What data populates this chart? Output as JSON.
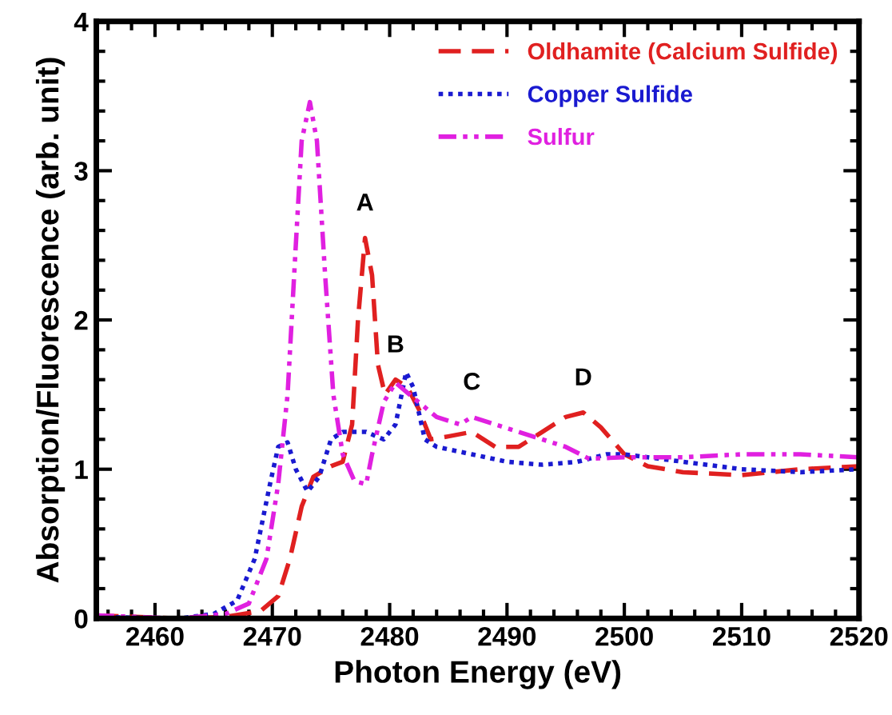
{
  "chart_data": {
    "type": "line",
    "xlabel": "Photon Energy (eV)",
    "ylabel": "Absorption/Fluorescence (arb. unit)",
    "xlim": [
      2455,
      2520
    ],
    "xticks": [
      2460,
      2470,
      2480,
      2490,
      2500,
      2510,
      2520
    ],
    "ylim": [
      0,
      4
    ],
    "yticks": [
      0,
      1,
      2,
      3,
      4
    ],
    "grid": false,
    "legend": "top right",
    "marker": "none",
    "series": [
      {
        "name": "Oldhamite (Calcium Sulfide)",
        "color": "#e02020",
        "line_style": "dashed",
        "x": [
          2455,
          2462,
          2466,
          2469,
          2470.5,
          2471.5,
          2472.5,
          2473.5,
          2475,
          2476,
          2476.8,
          2477.3,
          2477.9,
          2478.5,
          2479,
          2479.6,
          2480.5,
          2481.5,
          2482.5,
          2483.5,
          2485,
          2487,
          2489,
          2491,
          2493,
          2495,
          2496.5,
          2498,
          2500,
          2502,
          2505,
          2510,
          2515,
          2520
        ],
        "values": [
          0.02,
          0,
          0.01,
          0.05,
          0.15,
          0.4,
          0.75,
          0.95,
          1.02,
          1.05,
          1.3,
          2.0,
          2.55,
          2.3,
          1.7,
          1.5,
          1.6,
          1.55,
          1.4,
          1.2,
          1.22,
          1.25,
          1.15,
          1.15,
          1.25,
          1.35,
          1.38,
          1.28,
          1.1,
          1.02,
          0.98,
          0.96,
          1.0,
          1.02
        ]
      },
      {
        "name": "Copper Sulfide",
        "color": "#1a1ad0",
        "line_style": "dotted",
        "x": [
          2455,
          2462,
          2465,
          2467,
          2468.5,
          2469.8,
          2470.5,
          2471.3,
          2472,
          2473,
          2474,
          2475,
          2476,
          2478,
          2479.5,
          2480.5,
          2481.4,
          2482,
          2483,
          2484,
          2487,
          2490,
          2493,
          2496,
          2498.5,
          2500,
          2505,
          2510,
          2515,
          2520
        ],
        "values": [
          0.01,
          0,
          0.03,
          0.12,
          0.4,
          0.9,
          1.15,
          1.18,
          1.0,
          0.85,
          0.95,
          1.2,
          1.25,
          1.25,
          1.2,
          1.3,
          1.65,
          1.55,
          1.2,
          1.15,
          1.1,
          1.05,
          1.03,
          1.05,
          1.1,
          1.1,
          1.05,
          1.0,
          0.98,
          1.0
        ]
      },
      {
        "name": "Sulfur",
        "color": "#e020e0",
        "line_style": "dashdotdot",
        "x": [
          2455,
          2462,
          2466,
          2468,
          2469.5,
          2470.5,
          2471.3,
          2472,
          2472.5,
          2473.2,
          2473.8,
          2474.5,
          2475.2,
          2476,
          2477,
          2478,
          2478.5,
          2479.5,
          2480.5,
          2482,
          2484,
          2486,
          2487,
          2489,
          2491,
          2493,
          2495,
          2497,
          2500,
          2505,
          2510,
          2515,
          2520
        ],
        "values": [
          0.02,
          0,
          0.03,
          0.1,
          0.4,
          0.9,
          1.5,
          2.5,
          3.2,
          3.46,
          3.2,
          2.3,
          1.5,
          1.1,
          0.92,
          0.9,
          1.1,
          1.45,
          1.58,
          1.48,
          1.35,
          1.3,
          1.35,
          1.3,
          1.25,
          1.2,
          1.15,
          1.07,
          1.08,
          1.08,
          1.1,
          1.1,
          1.08
        ]
      }
    ],
    "annotations": [
      {
        "text": "A",
        "x": 2477.9,
        "y": 2.55
      },
      {
        "text": "B",
        "x": 2480.5,
        "y": 1.6
      },
      {
        "text": "C",
        "x": 2487,
        "y": 1.35
      },
      {
        "text": "D",
        "x": 2496.5,
        "y": 1.38
      }
    ]
  }
}
